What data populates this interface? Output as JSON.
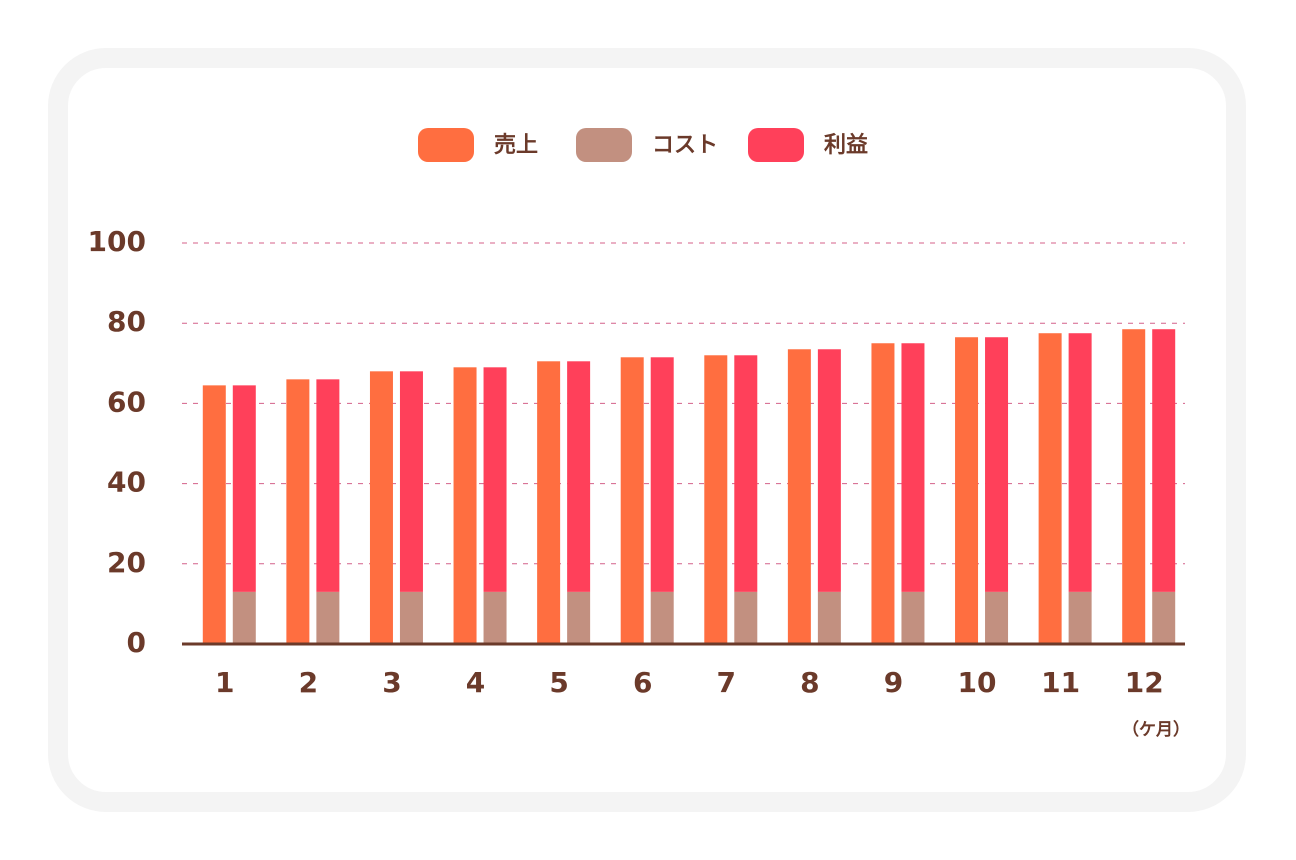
{
  "chart_data": {
    "type": "bar",
    "categories": [
      "1",
      "2",
      "3",
      "4",
      "5",
      "6",
      "7",
      "8",
      "9",
      "10",
      "11",
      "12"
    ],
    "series": [
      {
        "name": "売上",
        "color": "#ff6e40",
        "values": [
          64.5,
          66,
          68,
          69,
          70.5,
          71.5,
          72,
          73.5,
          75,
          76.5,
          77.5,
          78.5
        ]
      },
      {
        "name": "コスト",
        "color": "#c29080",
        "stacked": true,
        "values": [
          13,
          13,
          13,
          13,
          13,
          13,
          13,
          13,
          13,
          13,
          13,
          13
        ]
      },
      {
        "name": "利益",
        "color": "#ff405a",
        "stacked": true,
        "values": [
          51.5,
          53,
          55,
          56,
          57.5,
          58.5,
          59,
          60.5,
          62,
          63.5,
          64.5,
          65.5
        ]
      }
    ],
    "x_unit": "（ケ月）",
    "ylim": [
      0,
      100
    ],
    "yticks": [
      0,
      20,
      40,
      60,
      80,
      100
    ],
    "grid": true,
    "legend": "top"
  }
}
